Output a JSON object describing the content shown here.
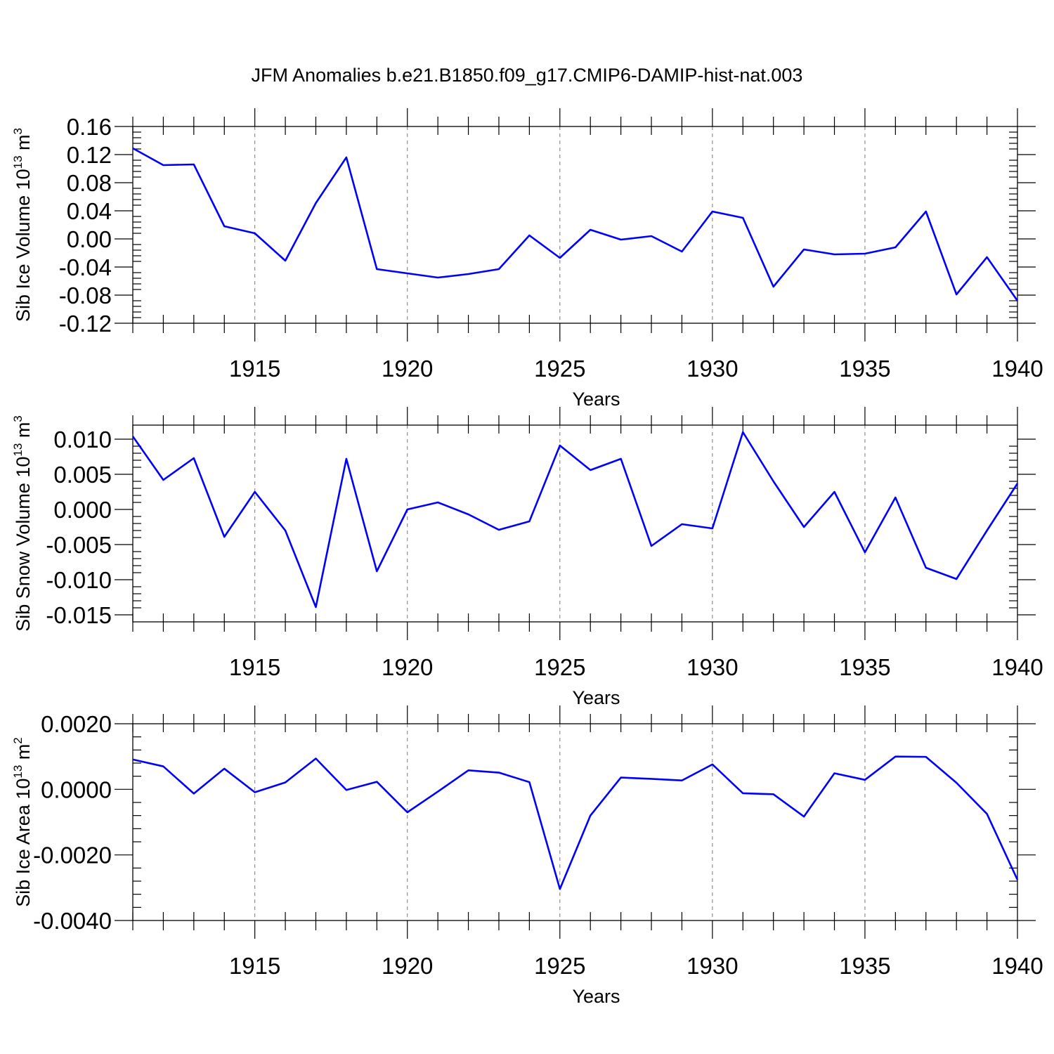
{
  "title": "JFM Anomalies b.e21.B1850.f09_g17.CMIP6-DAMIP-hist-nat.003",
  "colors": {
    "line": "#0000ff",
    "grid": "#777777",
    "frame": "#000000"
  },
  "chart_data": [
    {
      "type": "line",
      "title": "JFM Anomalies b.e21.B1850.f09_g17.CMIP6-DAMIP-hist-nat.003",
      "xlabel": "Years",
      "ylabel": "Sib Ice Volume 10",
      "ylabel_exponent": "13",
      "ylabel_unit": "m",
      "ylabel_unit_exponent": "3",
      "xlim": [
        1911,
        1940
      ],
      "ylim": [
        -0.12,
        0.16
      ],
      "xticks": [
        1915,
        1920,
        1925,
        1930,
        1935,
        1940
      ],
      "xtick_labels": [
        "1915",
        "1920",
        "1925",
        "1930",
        "1935",
        "1940"
      ],
      "yticks": [
        -0.12,
        -0.08,
        -0.04,
        0.0,
        0.04,
        0.08,
        0.12,
        0.16
      ],
      "ytick_labels": [
        "-0.12",
        "-0.08",
        "-0.04",
        "0.00",
        "0.04",
        "0.08",
        "0.12",
        "0.16"
      ],
      "grid": "vertical dashed at major x ticks",
      "x": [
        1911,
        1912,
        1913,
        1914,
        1915,
        1916,
        1917,
        1918,
        1919,
        1920,
        1921,
        1922,
        1923,
        1924,
        1925,
        1926,
        1927,
        1928,
        1929,
        1930,
        1931,
        1932,
        1933,
        1934,
        1935,
        1936,
        1937,
        1938,
        1939,
        1940
      ],
      "series": [
        {
          "name": "Sib Ice Volume",
          "values": [
            0.129,
            0.105,
            0.106,
            0.018,
            0.008,
            -0.031,
            0.051,
            0.116,
            -0.043,
            -0.049,
            -0.055,
            -0.05,
            -0.043,
            0.005,
            -0.027,
            0.013,
            -0.001,
            0.004,
            -0.018,
            0.039,
            0.03,
            -0.068,
            -0.015,
            -0.022,
            -0.021,
            -0.012,
            0.039,
            -0.079,
            -0.026,
            -0.088
          ]
        }
      ]
    },
    {
      "type": "line",
      "xlabel": "Years",
      "ylabel": "Sib Snow Volume 10",
      "ylabel_exponent": "13",
      "ylabel_unit": "m",
      "ylabel_unit_exponent": "3",
      "xlim": [
        1911,
        1940
      ],
      "ylim": [
        -0.016,
        0.012
      ],
      "xticks": [
        1915,
        1920,
        1925,
        1930,
        1935,
        1940
      ],
      "xtick_labels": [
        "1915",
        "1920",
        "1925",
        "1930",
        "1935",
        "1940"
      ],
      "yticks": [
        -0.015,
        -0.01,
        -0.005,
        0.0,
        0.005,
        0.01
      ],
      "ytick_labels": [
        "-0.015",
        "-0.010",
        "-0.005",
        "0.000",
        "0.005",
        "0.010"
      ],
      "grid": "vertical dashed at major x ticks",
      "x": [
        1911,
        1912,
        1913,
        1914,
        1915,
        1916,
        1917,
        1918,
        1919,
        1920,
        1921,
        1922,
        1923,
        1924,
        1925,
        1926,
        1927,
        1928,
        1929,
        1930,
        1931,
        1932,
        1933,
        1934,
        1935,
        1936,
        1937,
        1938,
        1939,
        1940
      ],
      "series": [
        {
          "name": "Sib Snow Volume",
          "values": [
            0.0104,
            0.0042,
            0.0073,
            -0.0039,
            0.0025,
            -0.003,
            -0.0139,
            0.0072,
            -0.0088,
            0.0,
            0.001,
            -0.0007,
            -0.0029,
            -0.0017,
            0.0091,
            0.0056,
            0.0072,
            -0.0052,
            -0.0021,
            -0.0027,
            0.011,
            0.004,
            -0.0025,
            0.0025,
            -0.0061,
            0.0017,
            -0.0083,
            -0.0099,
            -0.003,
            0.0037
          ]
        }
      ]
    },
    {
      "type": "line",
      "xlabel": "Years",
      "ylabel": "Sib Ice Area 10",
      "ylabel_exponent": "13",
      "ylabel_unit": "m",
      "ylabel_unit_exponent": "2",
      "xlim": [
        1911,
        1940
      ],
      "ylim": [
        -0.004,
        0.002
      ],
      "xticks": [
        1915,
        1920,
        1925,
        1930,
        1935,
        1940
      ],
      "xtick_labels": [
        "1915",
        "1920",
        "1925",
        "1930",
        "1935",
        "1940"
      ],
      "yticks": [
        -0.004,
        -0.002,
        0.0,
        0.002
      ],
      "ytick_labels": [
        "-0.0040",
        "-0.0020",
        "0.0000",
        "0.0020"
      ],
      "grid": "vertical dashed at major x ticks",
      "x": [
        1911,
        1912,
        1913,
        1914,
        1915,
        1916,
        1917,
        1918,
        1919,
        1920,
        1921,
        1922,
        1923,
        1924,
        1925,
        1926,
        1927,
        1928,
        1929,
        1930,
        1931,
        1932,
        1933,
        1934,
        1935,
        1936,
        1937,
        1938,
        1939,
        1940
      ],
      "series": [
        {
          "name": "Sib Ice Area",
          "values": [
            0.00091,
            0.0007,
            -0.00013,
            0.00063,
            -9e-05,
            0.00021,
            0.00094,
            -2e-05,
            0.00023,
            -0.0007,
            -7e-05,
            0.00058,
            0.00051,
            0.00022,
            -0.00304,
            -0.0008,
            0.00036,
            0.00032,
            0.00027,
            0.00076,
            -0.00012,
            -0.00015,
            -0.00083,
            0.00049,
            0.00029,
            0.001,
            0.00099,
            0.0002,
            -0.00075,
            -0.00276
          ]
        }
      ]
    }
  ]
}
